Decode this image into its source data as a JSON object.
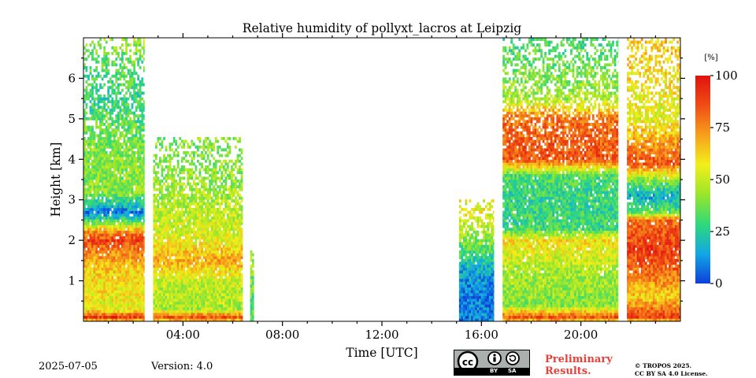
{
  "chart_data": {
    "type": "heatmap",
    "title": "Relative humidity of pollyxt_lacros at Leipzig",
    "xlabel": "Time [UTC]",
    "ylabel": "Height [km]",
    "x_range_hours": [
      0,
      24
    ],
    "y_range_km": [
      0,
      7
    ],
    "x_ticks": [
      {
        "h": 4,
        "label": "04:00"
      },
      {
        "h": 8,
        "label": "08:00"
      },
      {
        "h": 12,
        "label": "12:00"
      },
      {
        "h": 16,
        "label": "16:00"
      },
      {
        "h": 20,
        "label": "20:00"
      }
    ],
    "y_ticks": [
      {
        "v": 1,
        "label": "1"
      },
      {
        "v": 2,
        "label": "2"
      },
      {
        "v": 3,
        "label": "3"
      },
      {
        "v": 4,
        "label": "4"
      },
      {
        "v": 5,
        "label": "5"
      },
      {
        "v": 6,
        "label": "6"
      }
    ],
    "colorbar": {
      "unit": "[%]",
      "range": [
        0,
        100
      ],
      "ticks": [
        {
          "v": 0,
          "label": "0"
        },
        {
          "v": 25,
          "label": "25"
        },
        {
          "v": 50,
          "label": "50"
        },
        {
          "v": 75,
          "label": "75"
        },
        {
          "v": 100,
          "label": "100"
        }
      ],
      "colors": [
        "#0d3fd9",
        "#11a7e6",
        "#2fd97a",
        "#9ae62a",
        "#f2ef19",
        "#f7a01c",
        "#f04d14",
        "#e0120f"
      ]
    },
    "measurement_segments": [
      {
        "t0": 0.0,
        "t1": 2.45,
        "rh_profile": [
          [
            0.0,
            60
          ],
          [
            0.1,
            90
          ],
          [
            0.3,
            55
          ],
          [
            1.2,
            62
          ],
          [
            1.8,
            78
          ],
          [
            2.0,
            88
          ],
          [
            2.2,
            75
          ],
          [
            2.5,
            30
          ],
          [
            2.7,
            8
          ],
          [
            2.85,
            20
          ],
          [
            3.2,
            42
          ],
          [
            4.5,
            38
          ],
          [
            5.5,
            28
          ],
          [
            6.5,
            35
          ],
          [
            7.0,
            45
          ]
        ],
        "top_km": 7.0
      },
      {
        "t0": 2.8,
        "t1": 6.4,
        "rh_profile": [
          [
            0.0,
            60
          ],
          [
            0.1,
            85
          ],
          [
            0.3,
            45
          ],
          [
            1.0,
            50
          ],
          [
            1.5,
            70
          ],
          [
            2.0,
            55
          ],
          [
            3.0,
            45
          ],
          [
            4.0,
            40
          ]
        ],
        "top_km": 4.5
      },
      {
        "t0": 6.7,
        "t1": 6.85,
        "rh_profile": [
          [
            0.0,
            40
          ],
          [
            0.5,
            30
          ],
          [
            1.5,
            45
          ]
        ],
        "top_km": 1.8
      },
      {
        "t0": 15.1,
        "t1": 16.5,
        "rh_profile": [
          [
            0.0,
            10
          ],
          [
            0.6,
            8
          ],
          [
            1.2,
            15
          ],
          [
            2.0,
            40
          ],
          [
            2.6,
            55
          ]
        ],
        "top_km": 3.0
      },
      {
        "t0": 16.85,
        "t1": 21.5,
        "rh_profile": [
          [
            0.0,
            60
          ],
          [
            0.1,
            85
          ],
          [
            0.4,
            40
          ],
          [
            1.2,
            45
          ],
          [
            2.0,
            60
          ],
          [
            2.3,
            30
          ],
          [
            3.0,
            28
          ],
          [
            3.6,
            32
          ],
          [
            4.0,
            85
          ],
          [
            5.0,
            80
          ],
          [
            5.5,
            45
          ],
          [
            7.0,
            30
          ]
        ],
        "top_km": 7.0
      },
      {
        "t0": 21.85,
        "t1": 24.0,
        "rh_profile": [
          [
            0.0,
            60
          ],
          [
            0.1,
            90
          ],
          [
            0.6,
            62
          ],
          [
            1.2,
            80
          ],
          [
            1.8,
            90
          ],
          [
            2.5,
            80
          ],
          [
            2.7,
            35
          ],
          [
            3.1,
            15
          ],
          [
            3.5,
            40
          ],
          [
            3.9,
            85
          ],
          [
            4.5,
            70
          ],
          [
            5.0,
            55
          ],
          [
            6.0,
            60
          ],
          [
            7.0,
            65
          ]
        ],
        "top_km": 7.0
      }
    ]
  },
  "footer": {
    "date": "2025-07-05",
    "version": "Version: 4.0",
    "preliminary_line1": "Preliminary",
    "preliminary_line2": "Results.",
    "license_line1": "© TROPOS 2025.",
    "license_line2": "CC BY SA 4.0 License.",
    "cc_by": "BY",
    "cc_sa": "SA",
    "cc_mark": "cc"
  }
}
